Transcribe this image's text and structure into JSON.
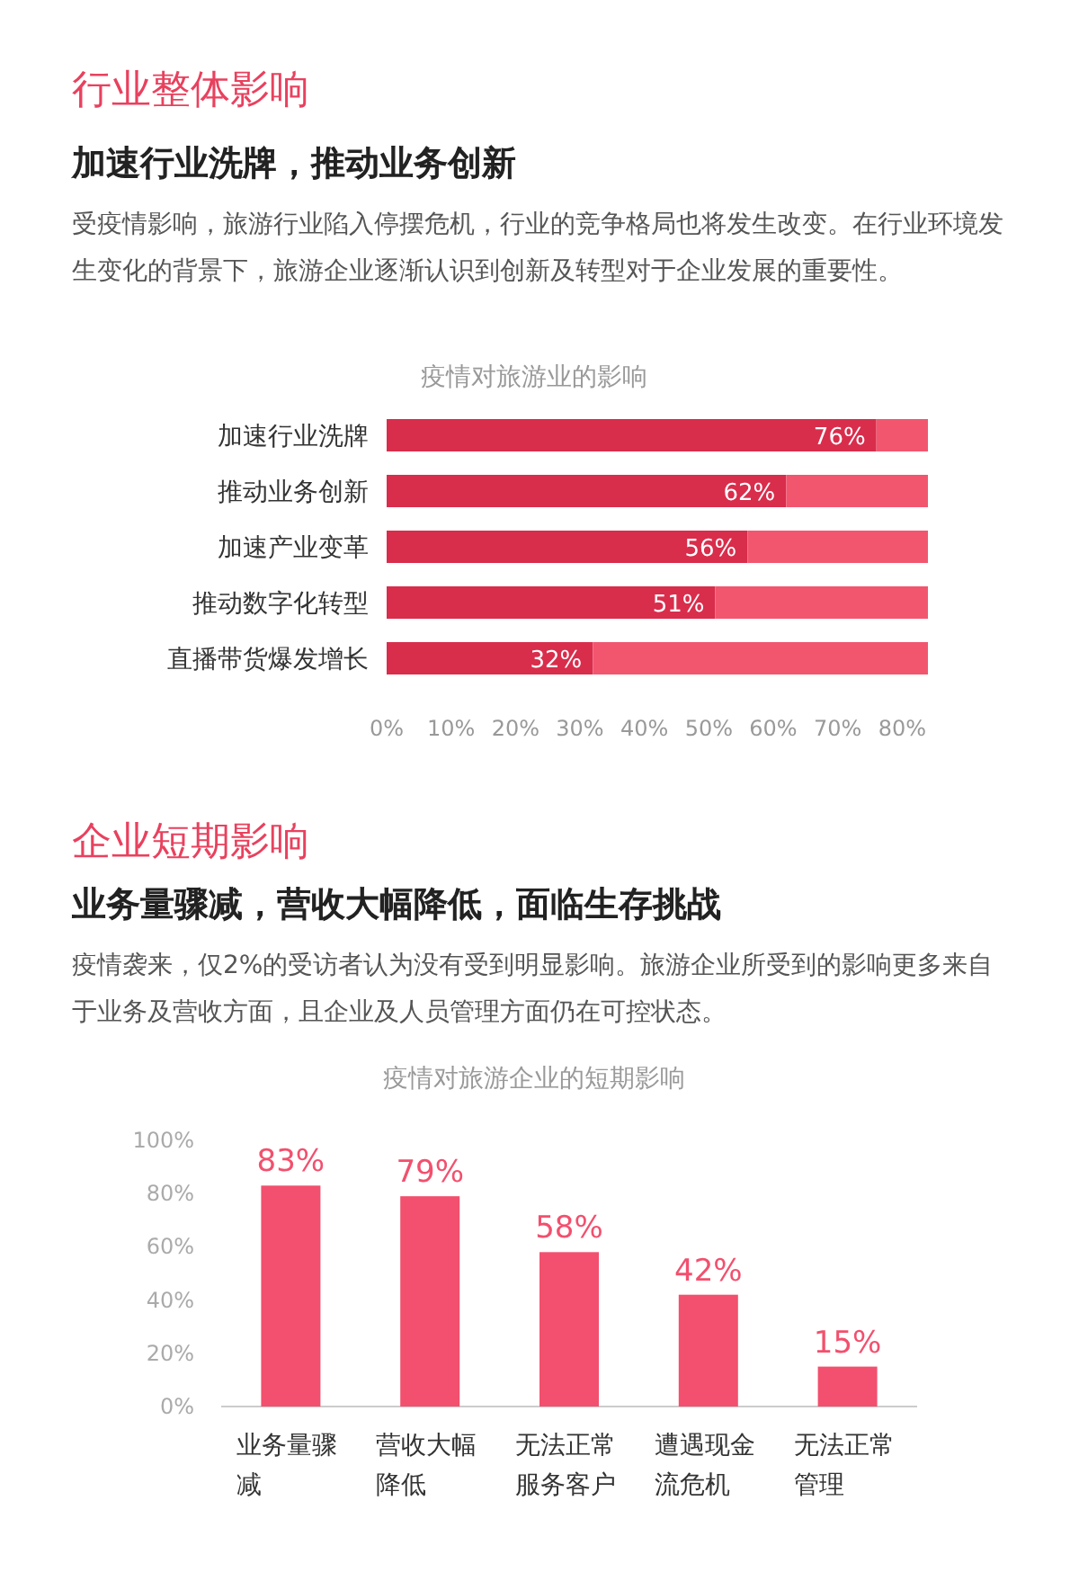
{
  "chart_data": [
    {
      "type": "bar",
      "orientation": "horizontal",
      "stacked": true,
      "title": "疫情对旅游业的影响",
      "annotations": [
        "行业整体影响",
        "加速行业洗牌，推动业务创新",
        "受疫情影响，旅游行业陷入停摆危机，行业的竞争格局也将发生改变。在行业环境发生变化的背景下，旅游企业逐渐认识到创新及转型对于企业发展的重要性。"
      ],
      "categories": [
        "加速行业洗牌",
        "推动业务创新",
        "加速产业变革",
        "推动数字化转型",
        "直播带货爆发增长"
      ],
      "series": [
        {
          "color": "#d92d4c",
          "values": [
            76,
            62,
            56,
            51,
            32
          ],
          "value_labels": [
            "76%",
            "62%",
            "56%",
            "51%",
            "32%"
          ]
        },
        {
          "color": "#f2566f",
          "values": [
            8,
            22,
            28,
            33,
            52
          ]
        }
      ],
      "xlim": [
        0,
        84
      ],
      "xticks": [
        {
          "value": 0,
          "label": "0%"
        },
        {
          "value": 10,
          "label": "10%"
        },
        {
          "value": 20,
          "label": "20%"
        },
        {
          "value": 30,
          "label": "30%"
        },
        {
          "value": 40,
          "label": "40%"
        },
        {
          "value": 50,
          "label": "50%"
        },
        {
          "value": 60,
          "label": "60%"
        },
        {
          "value": 70,
          "label": "70%"
        },
        {
          "value": 80,
          "label": "80%"
        }
      ]
    },
    {
      "type": "bar",
      "title": "疫情对旅游企业的短期影响",
      "annotations": [
        "企业短期影响",
        "业务量骤减，营收大幅降低，面临生存挑战",
        "疫情袭来，仅2%的受访者认为没有受到明显影响。旅游企业所受到的影响更多来自于业务及营收方面，且企业及人员管理方面仍在可控状态。"
      ],
      "categories": [
        "业务量骤减",
        "营收大幅降低",
        "无法正常服务客户",
        "遭遇现金流危机",
        "无法正常管理"
      ],
      "values": [
        83,
        79,
        58,
        42,
        15
      ],
      "color": "#f2506e",
      "value_labels": [
        "83%",
        "79%",
        "58%",
        "42%",
        "15%"
      ],
      "ylim": [
        0,
        100
      ],
      "yticks": [
        {
          "value": 0,
          "label": "0%"
        },
        {
          "value": 20,
          "label": "20%"
        },
        {
          "value": 40,
          "label": "40%"
        },
        {
          "value": 60,
          "label": "60%"
        },
        {
          "value": 80,
          "label": "80%"
        },
        {
          "value": 100,
          "label": "100%"
        }
      ]
    }
  ]
}
